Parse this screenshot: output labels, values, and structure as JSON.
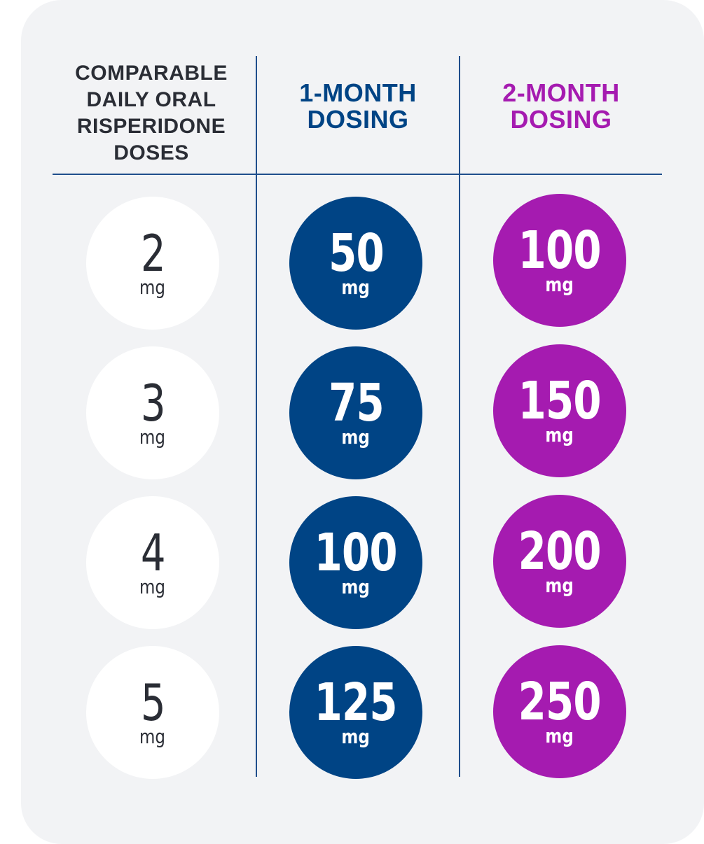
{
  "headers": {
    "oral": [
      "COMPARABLE",
      "DAILY ORAL",
      "RISPERIDONE",
      "DOSES"
    ],
    "one_month": [
      "1-MONTH",
      "DOSING"
    ],
    "two_month": [
      "2-MONTH",
      "DOSING"
    ]
  },
  "unit": "mg",
  "rows": [
    {
      "oral": "2",
      "one_month": "50",
      "two_month": "100"
    },
    {
      "oral": "3",
      "one_month": "75",
      "two_month": "150"
    },
    {
      "oral": "4",
      "one_month": "100",
      "two_month": "200"
    },
    {
      "oral": "5",
      "one_month": "125",
      "two_month": "250"
    }
  ],
  "colors": {
    "card_background": "#f2f3f5",
    "one_month": "#004485",
    "two_month": "#a51bb0",
    "oral_text": "#2a2d35",
    "divider": "#1f4e8c"
  }
}
